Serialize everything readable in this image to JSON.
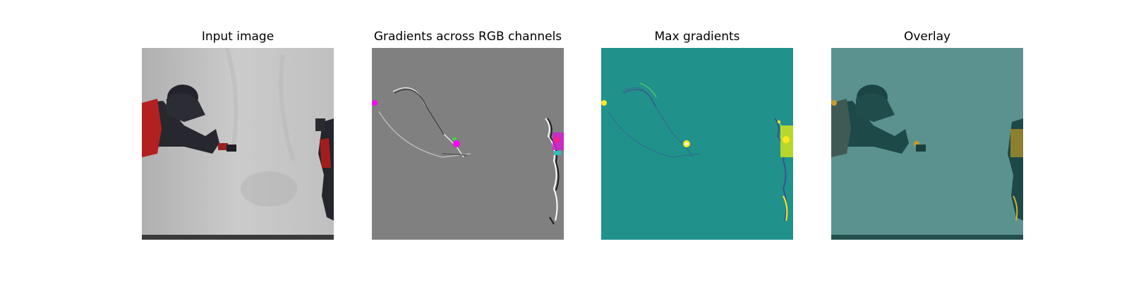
{
  "figure": {
    "panels": [
      {
        "id": "input",
        "title": "Input image"
      },
      {
        "id": "gradients",
        "title": "Gradients across RGB channels"
      },
      {
        "id": "max",
        "title": "Max gradients"
      },
      {
        "id": "overlay",
        "title": "Overlay"
      }
    ]
  },
  "colors": {
    "background": "#ffffff",
    "input_backdrop": "#c4c4c4",
    "robot_dark": "#25252d",
    "robot_red": "#b51f1f",
    "gradient_gray": "#808080",
    "viridis_mid": "#21918c",
    "viridis_yellow": "#fde725",
    "overlay_base": "#4f8a86",
    "overlay_dark": "#1a4a49",
    "magenta": "#ff00ff",
    "green": "#00d000"
  }
}
